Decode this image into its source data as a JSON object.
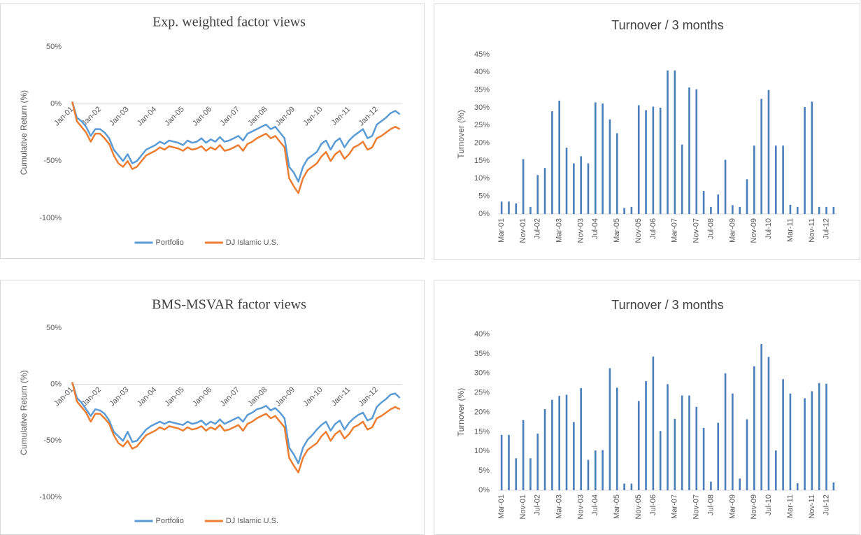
{
  "chart_data": [
    {
      "type": "line",
      "title": "Exp. weighted factor views",
      "y_label": "Cumulative Return (%)",
      "legend": "bottom",
      "grid": false,
      "categories": [
        "Jan-01",
        null,
        null,
        null,
        null,
        null,
        "Jan-02",
        null,
        null,
        null,
        null,
        null,
        "Jan-03",
        null,
        null,
        null,
        null,
        null,
        "Jan-04",
        null,
        null,
        null,
        null,
        null,
        "Jan-05",
        null,
        null,
        null,
        null,
        null,
        "Jan-06",
        null,
        null,
        null,
        null,
        null,
        "Jan-07",
        null,
        null,
        null,
        null,
        null,
        "Jan-08",
        null,
        null,
        null,
        null,
        null,
        "Jan-09",
        null,
        null,
        null,
        null,
        null,
        "Jan-10",
        null,
        null,
        null,
        null,
        null,
        "Jan-11",
        null,
        null,
        null,
        null,
        null,
        "Jan-12",
        null,
        null,
        null,
        null,
        null
      ],
      "ylim": [
        -100,
        50
      ],
      "yticks": [
        {
          "value": -100,
          "label": "-100%"
        },
        {
          "value": -50,
          "label": "-50%"
        },
        {
          "value": 0,
          "label": "0%"
        },
        {
          "value": 50,
          "label": "50%"
        }
      ],
      "series": [
        {
          "name": "Portfolio",
          "color": "#5b9bd5",
          "values": [
            2,
            -12,
            -15,
            -20,
            -28,
            -22,
            -22,
            -25,
            -30,
            -40,
            -45,
            -50,
            -44,
            -52,
            -50,
            -45,
            -40,
            -38,
            -36,
            -33,
            -35,
            -32,
            -33,
            -34,
            -36,
            -32,
            -34,
            -33,
            -30,
            -34,
            -31,
            -33,
            -29,
            -33,
            -32,
            -30,
            -28,
            -32,
            -26,
            -24,
            -22,
            -20,
            -18,
            -22,
            -20,
            -25,
            -30,
            -55,
            -60,
            -68,
            -55,
            -48,
            -45,
            -42,
            -35,
            -32,
            -40,
            -33,
            -30,
            -38,
            -32,
            -28,
            -25,
            -22,
            -30,
            -28,
            -18,
            -15,
            -12,
            -8,
            -6,
            -9
          ]
        },
        {
          "name": "DJ Islamic U.S.",
          "color": "#ed7d31",
          "values": [
            2,
            -15,
            -20,
            -25,
            -33,
            -26,
            -26,
            -30,
            -35,
            -45,
            -52,
            -55,
            -50,
            -57,
            -55,
            -50,
            -45,
            -43,
            -41,
            -38,
            -40,
            -37,
            -38,
            -39,
            -41,
            -38,
            -40,
            -39,
            -37,
            -41,
            -38,
            -40,
            -36,
            -41,
            -40,
            -38,
            -36,
            -41,
            -35,
            -33,
            -30,
            -28,
            -26,
            -30,
            -28,
            -33,
            -38,
            -65,
            -72,
            -78,
            -65,
            -58,
            -55,
            -52,
            -46,
            -42,
            -50,
            -44,
            -41,
            -48,
            -44,
            -38,
            -36,
            -33,
            -40,
            -38,
            -30,
            -28,
            -25,
            -22,
            -20,
            -22
          ]
        }
      ]
    },
    {
      "type": "bar",
      "title": "Turnover / 3 months",
      "y_label": "Turnover (%)",
      "grid": false,
      "color": "#4a7ebb",
      "categories": [
        "Mar-01",
        null,
        null,
        "Nov-01",
        null,
        "Jul-02",
        null,
        null,
        "Mar-03",
        null,
        null,
        "Nov-03",
        null,
        "Jul-04",
        null,
        null,
        "Mar-05",
        null,
        null,
        "Nov-05",
        null,
        "Jul-06",
        null,
        null,
        "Mar-07",
        null,
        null,
        "Nov-07",
        null,
        "Jul-08",
        null,
        null,
        "Mar-09",
        null,
        null,
        "Nov-09",
        null,
        "Jul-10",
        null,
        null,
        "Mar-11",
        null,
        null,
        "Nov-11",
        null,
        "Jul-12",
        null
      ],
      "values": [
        3.5,
        3.5,
        3,
        15.5,
        2,
        11,
        13,
        29,
        32,
        18.7,
        14.3,
        16.3,
        14.3,
        31.5,
        31.2,
        26.7,
        22.8,
        1.7,
        2,
        30.7,
        29.3,
        30.3,
        30,
        40.5,
        40.5,
        19.6,
        35.7,
        35.2,
        6.5,
        2,
        5.5,
        15.3,
        2.5,
        2,
        9.8,
        19.3,
        32.5,
        35,
        19.3,
        19.3,
        2.6,
        2,
        30.2,
        31.7,
        2,
        2,
        2
      ],
      "ylim": [
        0,
        45
      ],
      "yticks": [
        {
          "value": 0,
          "label": "0%"
        },
        {
          "value": 5,
          "label": "5%"
        },
        {
          "value": 10,
          "label": "10%"
        },
        {
          "value": 15,
          "label": "15%"
        },
        {
          "value": 20,
          "label": "20%"
        },
        {
          "value": 25,
          "label": "25%"
        },
        {
          "value": 30,
          "label": "30%"
        },
        {
          "value": 35,
          "label": "35%"
        },
        {
          "value": 40,
          "label": "40%"
        },
        {
          "value": 45,
          "label": "45%"
        }
      ]
    },
    {
      "type": "line",
      "title": "BMS-MSVAR factor views",
      "y_label": "Cumulative Return (%)",
      "legend": "bottom",
      "grid": false,
      "categories": [
        "Jan-01",
        null,
        null,
        null,
        null,
        null,
        "Jan-02",
        null,
        null,
        null,
        null,
        null,
        "Jan-03",
        null,
        null,
        null,
        null,
        null,
        "Jan-04",
        null,
        null,
        null,
        null,
        null,
        "Jan-05",
        null,
        null,
        null,
        null,
        null,
        "Jan-06",
        null,
        null,
        null,
        null,
        null,
        "Jan-07",
        null,
        null,
        null,
        null,
        null,
        "Jan-08",
        null,
        null,
        null,
        null,
        null,
        "Jan-09",
        null,
        null,
        null,
        null,
        null,
        "Jan-10",
        null,
        null,
        null,
        null,
        null,
        "Jan-11",
        null,
        null,
        null,
        null,
        null,
        "Jan-12",
        null,
        null,
        null,
        null,
        null
      ],
      "ylim": [
        -100,
        50
      ],
      "yticks": [
        {
          "value": -100,
          "label": "-100%"
        },
        {
          "value": -50,
          "label": "-50%"
        },
        {
          "value": 0,
          "label": "0%"
        },
        {
          "value": 50,
          "label": "50%"
        }
      ],
      "series": [
        {
          "name": "Portfolio",
          "color": "#5b9bd5",
          "values": [
            2,
            -12,
            -16,
            -22,
            -28,
            -22,
            -23,
            -26,
            -32,
            -42,
            -46,
            -50,
            -42,
            -51,
            -50,
            -45,
            -40,
            -37,
            -35,
            -33,
            -35,
            -33,
            -34,
            -35,
            -36,
            -33,
            -35,
            -34,
            -32,
            -36,
            -33,
            -35,
            -31,
            -35,
            -33,
            -31,
            -29,
            -33,
            -27,
            -25,
            -22,
            -21,
            -19,
            -23,
            -21,
            -25,
            -30,
            -56,
            -62,
            -70,
            -56,
            -49,
            -45,
            -40,
            -36,
            -33,
            -41,
            -35,
            -32,
            -40,
            -34,
            -30,
            -27,
            -25,
            -32,
            -30,
            -20,
            -16,
            -13,
            -9,
            -8,
            -12
          ]
        },
        {
          "name": "DJ Islamic U.S.",
          "color": "#ed7d31",
          "values": [
            2,
            -15,
            -20,
            -25,
            -33,
            -26,
            -26,
            -30,
            -35,
            -45,
            -52,
            -55,
            -50,
            -57,
            -55,
            -50,
            -45,
            -43,
            -41,
            -38,
            -40,
            -37,
            -38,
            -39,
            -41,
            -38,
            -40,
            -39,
            -37,
            -41,
            -38,
            -40,
            -36,
            -41,
            -40,
            -38,
            -36,
            -41,
            -35,
            -33,
            -30,
            -28,
            -26,
            -30,
            -28,
            -33,
            -38,
            -65,
            -72,
            -78,
            -65,
            -58,
            -55,
            -52,
            -46,
            -42,
            -50,
            -44,
            -41,
            -48,
            -44,
            -38,
            -36,
            -33,
            -40,
            -38,
            -30,
            -28,
            -25,
            -22,
            -20,
            -22
          ]
        }
      ]
    },
    {
      "type": "bar",
      "title": "Turnover / 3 months",
      "y_label": "Turnover (%)",
      "grid": false,
      "color": "#4a7ebb",
      "categories": [
        "Mar-01",
        null,
        null,
        "Nov-01",
        null,
        "Jul-02",
        null,
        null,
        "Mar-03",
        null,
        null,
        "Nov-03",
        null,
        "Jul-04",
        null,
        null,
        "Mar-05",
        null,
        null,
        "Nov-05",
        null,
        "Jul-06",
        null,
        null,
        "Mar-07",
        null,
        null,
        "Nov-07",
        null,
        "Jul-08",
        null,
        null,
        "Mar-09",
        null,
        null,
        "Nov-09",
        null,
        "Jul-10",
        null,
        null,
        "Mar-11",
        null,
        null,
        "Nov-11",
        null,
        "Jul-12",
        null
      ],
      "values": [
        14.2,
        14.2,
        8.2,
        18,
        8.2,
        14.5,
        20.8,
        23.2,
        24.2,
        24.5,
        17.5,
        26.2,
        7.8,
        10.2,
        10.3,
        31.3,
        26.3,
        1.7,
        1.7,
        22.9,
        28,
        34.3,
        15.2,
        27.2,
        18.3,
        24.3,
        24.3,
        21.4,
        16,
        2.2,
        17.3,
        30,
        24.8,
        3,
        18.2,
        31.8,
        37.5,
        34.2,
        10.2,
        28.5,
        24.8,
        1.8,
        23.6,
        25.4,
        27.5,
        27.3,
        2
      ],
      "ylim": [
        0,
        40
      ],
      "yticks": [
        {
          "value": 0,
          "label": "0%"
        },
        {
          "value": 5,
          "label": "5%"
        },
        {
          "value": 10,
          "label": "10%"
        },
        {
          "value": 15,
          "label": "15%"
        },
        {
          "value": 20,
          "label": "20%"
        },
        {
          "value": 25,
          "label": "25%"
        },
        {
          "value": 30,
          "label": "30%"
        },
        {
          "value": 35,
          "label": "35%"
        },
        {
          "value": 40,
          "label": "40%"
        }
      ]
    }
  ]
}
